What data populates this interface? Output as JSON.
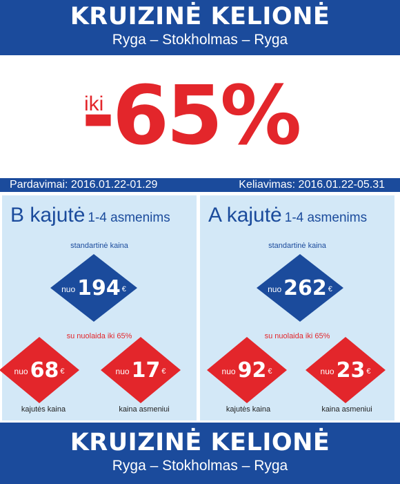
{
  "header": {
    "title": "KRUIZINĖ KELIONĖ",
    "subtitle": "Ryga – Stokholmas – Ryga"
  },
  "promo": {
    "prefix": "iki",
    "discount": "-65%"
  },
  "dates": {
    "sales": "Pardavimai: 2016.01.22-01.29",
    "travel": "Keliavimas: 2016.01.22-05.31"
  },
  "cabins": [
    {
      "name": "B kajutė",
      "capacity": "1-4 asmenims",
      "standard_label": "standartinė kaina",
      "standard_price": "194",
      "discount_label": "su nuolaida iki 65%",
      "cabin_price": "68",
      "person_price": "17",
      "cabin_caption": "kajutės kaina",
      "person_caption": "kaina asmeniui"
    },
    {
      "name": "A kajutė",
      "capacity": "1-4 asmenims",
      "standard_label": "standartinė kaina",
      "standard_price": "262",
      "discount_label": "su nuolaida iki 65%",
      "cabin_price": "92",
      "person_price": "23",
      "cabin_caption": "kajutės kaina",
      "person_caption": "kaina asmeniui"
    }
  ],
  "price_prefix": "nuo",
  "currency": "€",
  "footer": {
    "title": "KRUIZINĖ KELIONĖ",
    "subtitle": "Ryga – Stokholmas – Ryga"
  },
  "colors": {
    "brand_blue": "#1b4b9c",
    "accent_red": "#e3262b",
    "panel_bg": "#d3e8f7"
  }
}
